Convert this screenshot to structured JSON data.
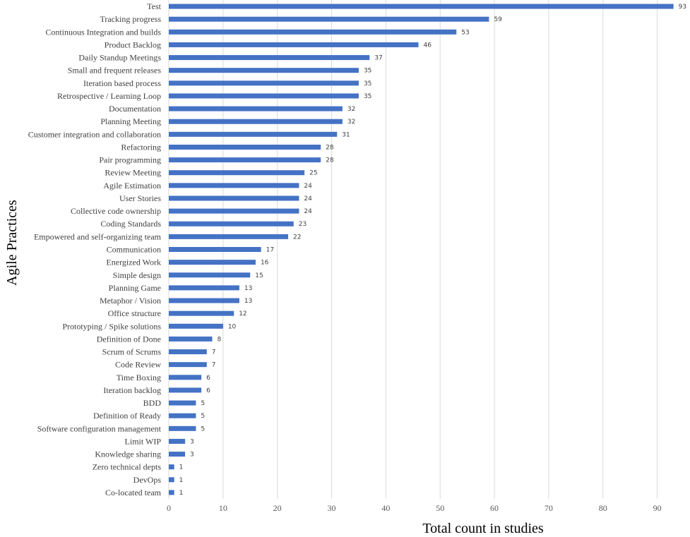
{
  "chart_data": {
    "type": "bar",
    "orientation": "horizontal",
    "title": "",
    "xlabel": "Total count in studies",
    "ylabel": "Agile Practices",
    "xlim": [
      0,
      95
    ],
    "xticks": [
      0,
      10,
      20,
      30,
      40,
      50,
      60,
      70,
      80,
      90
    ],
    "grid": "vertical",
    "legend": "none",
    "bar_color": "#4472c4",
    "categories": [
      "Test",
      "Tracking progress",
      "Continuous Integration and builds",
      "Product Backlog",
      "Daily Standup Meetings",
      "Small and frequent releases",
      "Iteration based process",
      "Retrospective / Learning Loop",
      "Documentation",
      "Planning Meeting",
      "Customer integration and collaboration",
      "Refactoring",
      "Pair programming",
      "Review Meeting",
      "Agile Estimation",
      "User Stories",
      "Collective code ownership",
      "Coding Standards",
      "Empowered and self-organizing team",
      "Communication",
      "Energized Work",
      "Simple design",
      "Planning Game",
      "Metaphor / Vision",
      "Office structure",
      "Prototyping / Spike solutions",
      "Definition of Done",
      "Scrum of Scrums",
      "Code Review",
      "Time Boxing",
      "Iteration backlog",
      "BDD",
      "Definition of Ready",
      "Software configuration management",
      "Limit WIP",
      "Knowledge sharing",
      "Zero technical depts",
      "DevOps",
      "Co-located team"
    ],
    "values": [
      93,
      59,
      53,
      46,
      37,
      35,
      35,
      35,
      32,
      32,
      31,
      28,
      28,
      25,
      24,
      24,
      24,
      23,
      22,
      17,
      16,
      15,
      13,
      13,
      12,
      10,
      8,
      7,
      7,
      6,
      6,
      5,
      5,
      5,
      3,
      3,
      1,
      1,
      1
    ]
  }
}
